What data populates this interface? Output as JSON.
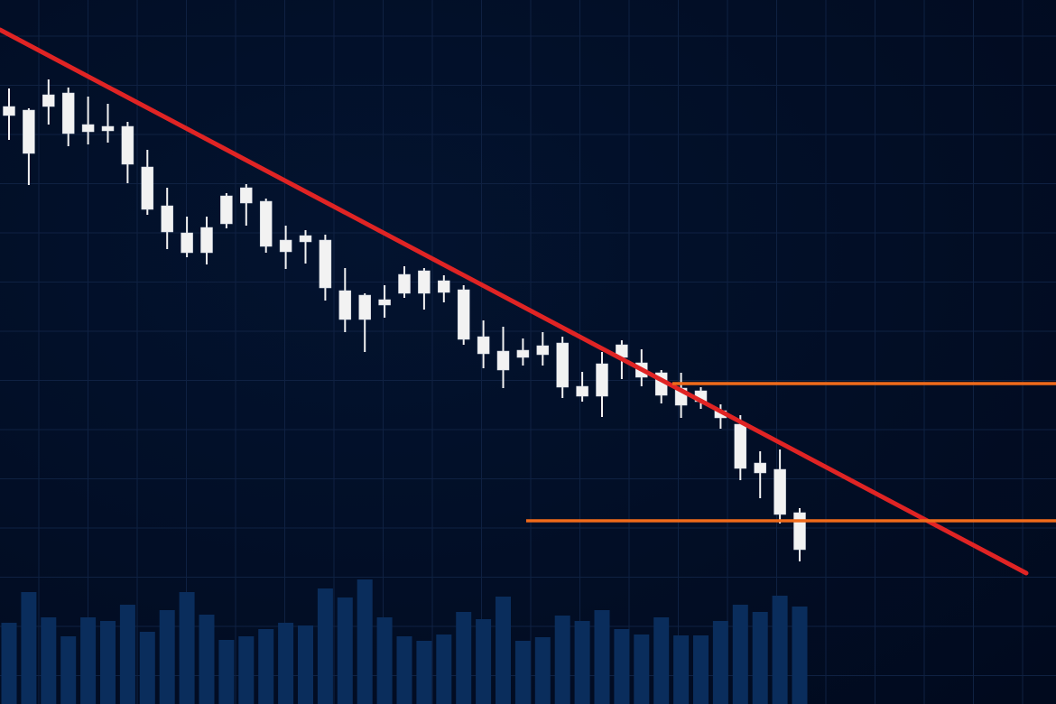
{
  "chart_data": {
    "type": "candlestick",
    "open": [
      662,
      658,
      675,
      677,
      642,
      640,
      640,
      595,
      552,
      522,
      528,
      563,
      572,
      557,
      514,
      519,
      514,
      458,
      453,
      448,
      476,
      480,
      469,
      459,
      407,
      391,
      392,
      397,
      400,
      352,
      377,
      398,
      378,
      367,
      350,
      347,
      325,
      310,
      267,
      260,
      212
    ],
    "close": [
      652,
      610,
      662,
      632,
      634,
      635,
      598,
      548,
      523,
      500,
      500,
      532,
      555,
      507,
      501,
      512,
      461,
      426,
      426,
      442,
      455,
      455,
      456,
      404,
      388,
      370,
      384,
      387,
      351,
      341,
      341,
      384,
      362,
      342,
      331,
      335,
      317,
      261,
      256,
      210,
      171
    ],
    "high": [
      682,
      660,
      692,
      683,
      673,
      665,
      645,
      614,
      572,
      540,
      540,
      566,
      576,
      560,
      530,
      525,
      520,
      483,
      455,
      464,
      485,
      483,
      475,
      464,
      425,
      418,
      405,
      412,
      407,
      368,
      390,
      403,
      393,
      370,
      367,
      351,
      332,
      320,
      280,
      282,
      217
    ],
    "low": [
      625,
      575,
      642,
      618,
      620,
      622,
      577,
      542,
      504,
      495,
      487,
      527,
      530,
      500,
      482,
      488,
      447,
      412,
      390,
      428,
      450,
      437,
      445,
      398,
      372,
      350,
      375,
      375,
      339,
      335,
      318,
      360,
      352,
      333,
      317,
      327,
      305,
      248,
      228,
      200,
      158
    ],
    "volume": [
      90,
      124,
      96,
      75,
      96,
      92,
      110,
      80,
      104,
      124,
      99,
      71,
      75,
      83,
      90,
      87,
      128,
      118,
      138,
      96,
      75,
      70,
      77,
      102,
      94,
      119,
      70,
      74,
      98,
      92,
      104,
      83,
      77,
      96,
      76,
      76,
      92,
      110,
      102,
      120,
      108
    ],
    "ylim": [
      0,
      780
    ],
    "vlim": [
      0,
      140
    ],
    "candle_color": "#f2f2f2",
    "volume_color": "#0a2d5c",
    "trendline": {
      "values": [
        747,
        145
      ],
      "color": "#e02424"
    },
    "levels": {
      "values": [
        355,
        203
      ],
      "color": "#f06a1a"
    }
  }
}
